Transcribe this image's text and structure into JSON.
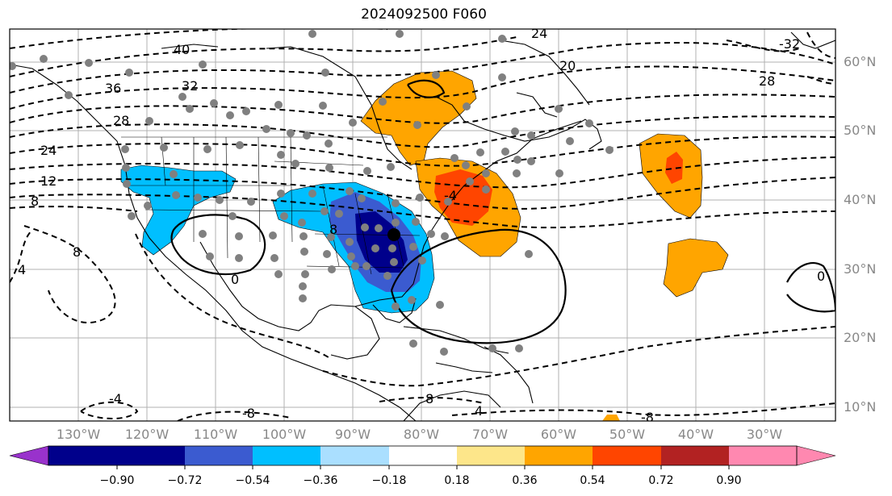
{
  "title": "2024092500 F060",
  "latitude_labels": [
    "60°N",
    "50°N",
    "40°N",
    "30°N",
    "20°N",
    "10°N"
  ],
  "longitude_labels": [
    "130°W",
    "120°W",
    "110°W",
    "100°W",
    "90°W",
    "80°W",
    "70°W",
    "60°W",
    "50°W",
    "40°W",
    "30°W"
  ],
  "contour_labels": [
    "40",
    "36",
    "32",
    "28",
    "24",
    "12",
    "8",
    "4",
    "0",
    "-4",
    "8",
    "-8",
    "20",
    "24",
    "28",
    "-32",
    "-4",
    "8",
    "0",
    "4",
    "-8",
    "8"
  ],
  "colorbar": {
    "tick_labels": [
      "−0.90",
      "−0.72",
      "−0.54",
      "−0.36",
      "−0.18",
      "0.18",
      "0.36",
      "0.54",
      "0.72",
      "0.90"
    ],
    "colors": [
      "#9932cc",
      "#00008b",
      "#3b5bd0",
      "#00bfff",
      "#aadfff",
      "#ffffff",
      "#fde68a",
      "#ffa500",
      "#ff4500",
      "#b22222",
      "#ff88b0"
    ]
  }
}
